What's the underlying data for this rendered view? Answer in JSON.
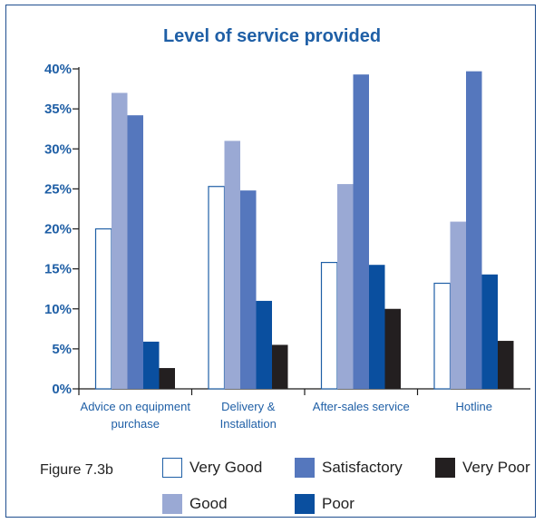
{
  "figure_caption": "Figure 7.3b",
  "chart_data": {
    "type": "bar",
    "title": "Level of service provided",
    "xlabel": "",
    "ylabel": "",
    "ylim": [
      0,
      40
    ],
    "yticks": [
      "0%",
      "5%",
      "10%",
      "15%",
      "20%",
      "25%",
      "30%",
      "35%",
      "40%"
    ],
    "categories": [
      [
        "Advice on equipment",
        "purchase"
      ],
      [
        "Delivery &",
        "Installation"
      ],
      [
        "After-sales service"
      ],
      [
        "Hotline"
      ]
    ],
    "series": [
      {
        "name": "Very Good",
        "color": "#ffffff",
        "stroke": "#1f5fa6",
        "values": [
          20,
          25.3,
          15.8,
          13.2
        ]
      },
      {
        "name": "Good",
        "color": "#9aa9d4",
        "values": [
          37,
          31,
          25.6,
          20.9
        ]
      },
      {
        "name": "Satisfactory",
        "color": "#5577bd",
        "values": [
          34.2,
          24.8,
          39.3,
          39.7
        ]
      },
      {
        "name": "Poor",
        "color": "#0a4f9f",
        "values": [
          5.9,
          11,
          15.5,
          14.3
        ]
      },
      {
        "name": "Very Poor",
        "color": "#231f20",
        "values": [
          2.6,
          5.5,
          10,
          6
        ]
      }
    ],
    "legend_position": "bottom",
    "grid": false
  }
}
